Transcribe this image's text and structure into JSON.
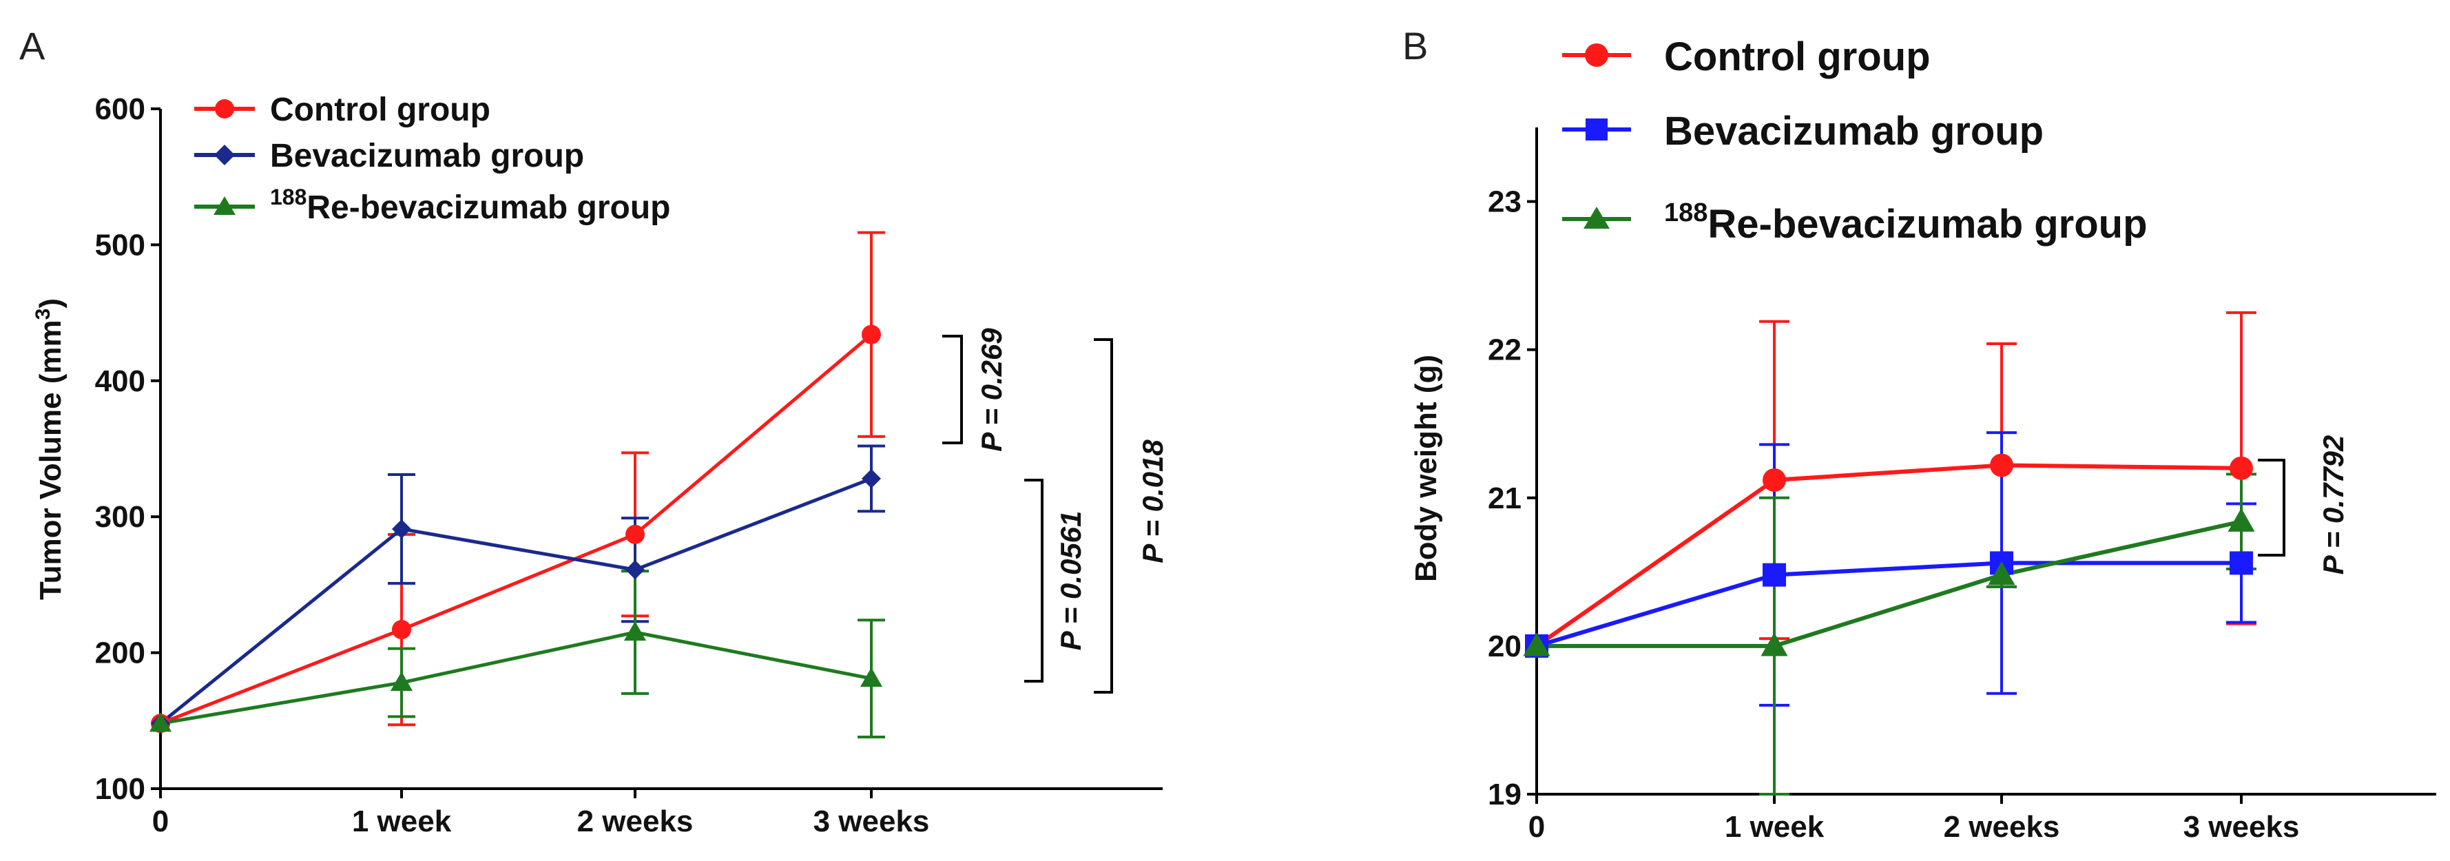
{
  "colors": {
    "control": "#ff1a1a",
    "bevacizumab_A": "#1a2a8c",
    "bevacizumab_B": "#1a1aff",
    "rebev": "#1f7a1f",
    "axis": "#000000"
  },
  "chart_data": [
    {
      "panel_letter": "A",
      "type": "line",
      "title": "",
      "xlabel": "",
      "ylabel": "Tumor Volume (mm",
      "ylabel_sup": "3",
      "ylabel_close": ")",
      "categories": [
        "0",
        "1 week",
        "2 weeks",
        "3 weeks"
      ],
      "ylim": [
        100,
        600
      ],
      "yticks": [
        "100",
        "200",
        "300",
        "400",
        "500",
        "600"
      ],
      "series": [
        {
          "name": "Control group",
          "color_key": "control",
          "marker": "circle",
          "values": [
            148,
            217,
            287,
            434
          ],
          "errors": [
            0,
            70,
            60,
            75
          ]
        },
        {
          "name": "Bevacizumab group",
          "color_key": "bevacizumab_A",
          "marker": "diamond",
          "values": [
            148,
            291,
            261,
            328
          ],
          "errors": [
            0,
            40,
            38,
            24
          ]
        },
        {
          "name": "Re-bevacizumab group",
          "name_sup": "188",
          "color_key": "rebev",
          "marker": "triangle",
          "values": [
            148,
            178,
            215,
            181
          ],
          "errors": [
            0,
            25,
            45,
            43
          ]
        }
      ],
      "annotations": [
        {
          "label": "P = 0.269",
          "between": [
            "Control group",
            "Bevacizumab group"
          ]
        },
        {
          "label": "P = 0.0561",
          "between": [
            "Bevacizumab group",
            "Re-bevacizumab group"
          ]
        },
        {
          "label": "P = 0.018",
          "between": [
            "Control group",
            "Re-bevacizumab group"
          ]
        }
      ],
      "legend": "top-left"
    },
    {
      "panel_letter": "B",
      "type": "line",
      "title": "",
      "xlabel": "",
      "ylabel": "Body weight (g)",
      "categories": [
        "0",
        "1 week",
        "2 weeks",
        "3 weeks"
      ],
      "ylim": [
        19,
        23.5
      ],
      "yticks": [
        "19",
        "20",
        "21",
        "22",
        "23"
      ],
      "series": [
        {
          "name": "Control group",
          "color_key": "control",
          "marker": "circle",
          "values": [
            20.0,
            21.12,
            21.22,
            21.2
          ],
          "errors": [
            0,
            1.07,
            0.82,
            1.05
          ]
        },
        {
          "name": "Bevacizumab group",
          "color_key": "bevacizumab_B",
          "marker": "square",
          "values": [
            20.0,
            20.48,
            20.56,
            20.56
          ],
          "errors": [
            0,
            0.88,
            0.88,
            0.4
          ]
        },
        {
          "name": "Re-bevacizumab group",
          "name_sup": "188",
          "color_key": "rebev",
          "marker": "triangle",
          "values": [
            20.0,
            20.0,
            20.48,
            20.84
          ],
          "errors": [
            0,
            1.0,
            0.08,
            0.32
          ]
        }
      ],
      "annotations": [
        {
          "label": "P = 0.7792",
          "between": [
            "Control group",
            "Bevacizumab group"
          ]
        }
      ],
      "legend": "top"
    }
  ]
}
